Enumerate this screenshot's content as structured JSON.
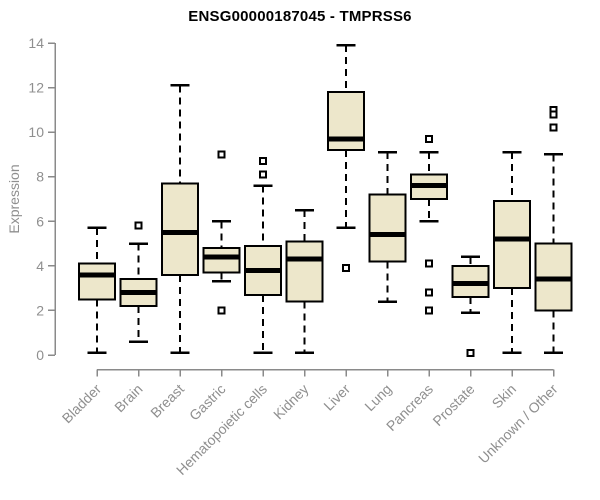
{
  "page": {
    "background": "#FFFFFF"
  },
  "chart_data": {
    "type": "boxplot",
    "title": "ENSG00000187045 - TMPRSS6",
    "ylabel": "Expression",
    "xlabel": "",
    "ylim": [
      0,
      14
    ],
    "yticks": [
      0,
      2,
      4,
      6,
      8,
      10,
      12,
      14
    ],
    "grid": false,
    "legend": "none",
    "colors": {
      "box_fill": "#EDE7CB",
      "box_stroke": "#000000",
      "median": "#000000",
      "whisker": "#000000",
      "outlier_stroke": "#000000",
      "outlier_fill": "#FFFFFF",
      "axis_line": "#8A8A8A",
      "axis_text": "#8F8F8F",
      "title_text": "#000000",
      "background": "#FFFFFF"
    },
    "categories": [
      "Bladder",
      "Brain",
      "Breast",
      "Gastric",
      "Hematopoietic cells",
      "Kidney",
      "Liver",
      "Lung",
      "Pancreas",
      "Prostate",
      "Skin",
      "Unknown / Other"
    ],
    "boxes": [
      {
        "category": "Bladder",
        "whisker_low": 0.1,
        "q1": 2.5,
        "median": 3.6,
        "q3": 4.1,
        "whisker_high": 5.7,
        "outliers": []
      },
      {
        "category": "Brain",
        "whisker_low": 0.6,
        "q1": 2.2,
        "median": 2.8,
        "q3": 3.4,
        "whisker_high": 5.0,
        "outliers": [
          5.8
        ]
      },
      {
        "category": "Breast",
        "whisker_low": 0.1,
        "q1": 3.6,
        "median": 5.5,
        "q3": 7.7,
        "whisker_high": 12.1,
        "outliers": []
      },
      {
        "category": "Gastric",
        "whisker_low": 3.3,
        "q1": 3.7,
        "median": 4.4,
        "q3": 4.8,
        "whisker_high": 6.0,
        "outliers": [
          9.0,
          2.0
        ]
      },
      {
        "category": "Hematopoietic cells",
        "whisker_low": 0.1,
        "q1": 2.7,
        "median": 3.8,
        "q3": 4.9,
        "whisker_high": 7.6,
        "outliers": [
          8.7,
          8.1
        ]
      },
      {
        "category": "Kidney",
        "whisker_low": 0.1,
        "q1": 2.4,
        "median": 4.3,
        "q3": 5.1,
        "whisker_high": 6.5,
        "outliers": []
      },
      {
        "category": "Liver",
        "whisker_low": 5.7,
        "q1": 9.2,
        "median": 9.7,
        "q3": 11.8,
        "whisker_high": 13.9,
        "outliers": [
          3.9
        ]
      },
      {
        "category": "Lung",
        "whisker_low": 2.4,
        "q1": 4.2,
        "median": 5.4,
        "q3": 7.2,
        "whisker_high": 9.1,
        "outliers": []
      },
      {
        "category": "Pancreas",
        "whisker_low": 6.0,
        "q1": 7.0,
        "median": 7.6,
        "q3": 8.1,
        "whisker_high": 9.1,
        "outliers": [
          9.7,
          4.1,
          2.8,
          2.0
        ]
      },
      {
        "category": "Prostate",
        "whisker_low": 1.9,
        "q1": 2.6,
        "median": 3.2,
        "q3": 4.0,
        "whisker_high": 4.4,
        "outliers": [
          0.1
        ]
      },
      {
        "category": "Skin",
        "whisker_low": 0.1,
        "q1": 3.0,
        "median": 5.2,
        "q3": 6.9,
        "whisker_high": 9.1,
        "outliers": []
      },
      {
        "category": "Unknown / Other",
        "whisker_low": 0.1,
        "q1": 2.0,
        "median": 3.4,
        "q3": 5.0,
        "whisker_high": 9.0,
        "outliers": [
          11.0,
          10.8,
          10.2
        ]
      }
    ]
  }
}
